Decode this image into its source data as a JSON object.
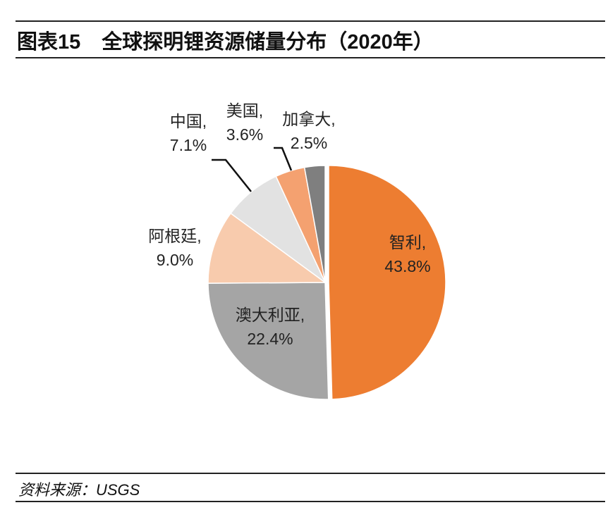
{
  "header": {
    "figure_number": "图表15",
    "title": "全球探明锂资源储量分布（2020年）"
  },
  "source": "资料来源：USGS",
  "chart_data": {
    "type": "pie",
    "title": "全球探明锂资源储量分布（2020年）",
    "start": "12 o'clock, clockwise",
    "slices": [
      {
        "label": "智利,",
        "value": 43.8,
        "text": "43.8%",
        "color": "#ED7D31"
      },
      {
        "label": "澳大利亚,",
        "value": 22.4,
        "text": "22.4%",
        "color": "#A5A5A5"
      },
      {
        "label": "阿根廷,",
        "value": 9.0,
        "text": "9.0%",
        "color": "#F8CBAD"
      },
      {
        "label": "中国,",
        "value": 7.1,
        "text": "7.1%",
        "color": "#E2E2E2"
      },
      {
        "label": "美国,",
        "value": 3.6,
        "text": "3.6%",
        "color": "#F4A170"
      },
      {
        "label": "加拿大,",
        "value": 2.5,
        "text": "2.5%",
        "color": "#7F7F7F"
      }
    ]
  }
}
